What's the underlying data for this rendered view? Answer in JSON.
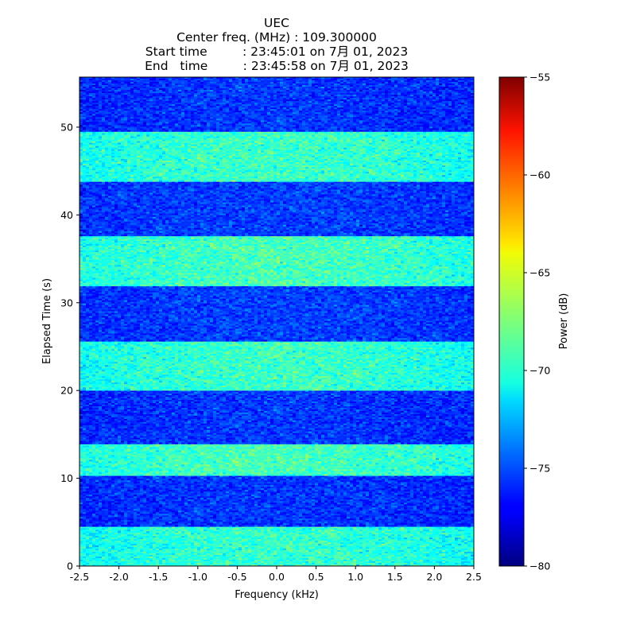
{
  "chart_data": {
    "type": "heatmap",
    "title": "UEC",
    "title_lines": [
      "UEC",
      "Center freq. (MHz) : 109.300000",
      "Start time         : 23:45:01 on 7月 01, 2023",
      "End   time         : 23:45:58 on 7月 01, 2023"
    ],
    "xlabel": "Frequency (kHz)",
    "ylabel": "Elapsed Time (s)",
    "xlim": [
      -2.5,
      2.5
    ],
    "ylim": [
      0,
      55.7
    ],
    "xticks": [
      -2.5,
      -2.0,
      -1.5,
      -1.0,
      -0.5,
      0.0,
      0.5,
      1.0,
      1.5,
      2.0,
      2.5
    ],
    "xtick_labels": [
      "-2.5",
      "-2.0",
      "-1.5",
      "-1.0",
      "-0.5",
      "0.0",
      "0.5",
      "1.0",
      "1.5",
      "2.0",
      "2.5"
    ],
    "yticks": [
      0,
      10,
      20,
      30,
      40,
      50
    ],
    "ytick_labels": [
      "0",
      "10",
      "20",
      "30",
      "40",
      "50"
    ],
    "colormap": "jet",
    "colorbar": {
      "label": "Power (dB)",
      "range": [
        -80,
        -55
      ],
      "ticks": [
        -80,
        -75,
        -70,
        -65,
        -60,
        -55
      ],
      "tick_labels": [
        "−80",
        "−75",
        "−70",
        "−65",
        "−60",
        "−55"
      ]
    },
    "time_segments": [
      {
        "t_start": 0.0,
        "t_end": 4.5,
        "mean_power_db": -70.5
      },
      {
        "t_start": 4.5,
        "t_end": 10.3,
        "mean_power_db": -76.0
      },
      {
        "t_start": 10.3,
        "t_end": 13.9,
        "mean_power_db": -70.0
      },
      {
        "t_start": 13.9,
        "t_end": 20.0,
        "mean_power_db": -76.0
      },
      {
        "t_start": 20.0,
        "t_end": 25.6,
        "mean_power_db": -70.3
      },
      {
        "t_start": 25.6,
        "t_end": 31.9,
        "mean_power_db": -75.8
      },
      {
        "t_start": 31.9,
        "t_end": 37.6,
        "mean_power_db": -70.0
      },
      {
        "t_start": 37.6,
        "t_end": 43.8,
        "mean_power_db": -75.8
      },
      {
        "t_start": 43.8,
        "t_end": 49.5,
        "mean_power_db": -70.3
      },
      {
        "t_start": 49.5,
        "t_end": 55.7,
        "mean_power_db": -76.0
      }
    ]
  }
}
